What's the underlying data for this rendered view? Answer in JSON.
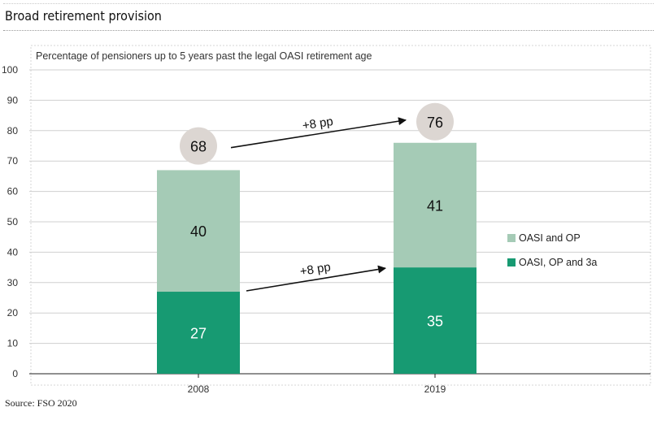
{
  "page": {
    "title": "Broad retirement provision",
    "source": "Source: FSO 2020"
  },
  "chart_data": {
    "type": "bar",
    "stacked": true,
    "subtitle": "Percentage of pensioners up to 5 years past the legal OASI retirement age",
    "categories": [
      "2008",
      "2019"
    ],
    "ylim": [
      0,
      100
    ],
    "yticks": [
      0,
      10,
      20,
      30,
      40,
      50,
      60,
      70,
      80,
      90,
      100
    ],
    "grid": true,
    "legend_position": "right",
    "series": [
      {
        "name": "OASI, OP and 3a",
        "values": [
          27,
          35
        ],
        "color": "#179a72"
      },
      {
        "name": "OASI and OP",
        "values": [
          40,
          41
        ],
        "color": "#a5cbb6"
      }
    ],
    "totals": [
      68,
      76
    ],
    "total_circle_color": "#dcd6d2",
    "annotations": [
      {
        "text": "+8 pp",
        "target": "totals"
      },
      {
        "text": "+8 pp",
        "target": "OASI, OP and 3a"
      }
    ]
  }
}
